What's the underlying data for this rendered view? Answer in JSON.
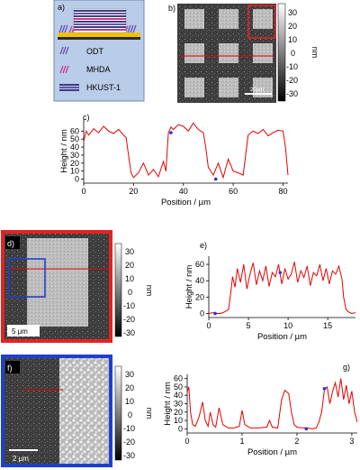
{
  "panels": {
    "a": {
      "label": "a)",
      "legend": [
        {
          "name": "ODT",
          "color": "#6a4fb3"
        },
        {
          "name": "MHDA",
          "color": "#c43a8c"
        },
        {
          "name": "HKUST-1",
          "color": "#3b3f7a"
        }
      ]
    },
    "b": {
      "label": "b)",
      "scalebar": "20μm"
    },
    "c": {
      "label": "c)"
    },
    "d": {
      "label": "d)",
      "scalebar": "5 μm"
    },
    "e": {
      "label": "e)"
    },
    "f": {
      "label": "f)",
      "scalebar": "2 μm"
    },
    "g": {
      "label": "g)"
    }
  },
  "colorbar": {
    "unit": "nm",
    "ticks": [
      "30",
      "20",
      "10",
      "0",
      "-10",
      "-20",
      "-30"
    ]
  },
  "colors": {
    "trace": "#e60000",
    "marker": "#3a2bd6",
    "frame_d": "#e52222",
    "frame_f": "#1f3fd1",
    "roi": "#1f3fd1"
  },
  "chart_data": [
    {
      "id": "c",
      "type": "line",
      "xlabel": "Position / µm",
      "ylabel": "Height / nm",
      "xlim": [
        0,
        82
      ],
      "ylim": [
        -5,
        75
      ],
      "xticks": [
        0,
        20,
        40,
        60,
        80
      ],
      "yticks": [
        0,
        10,
        20,
        30,
        40,
        50,
        60
      ],
      "x": [
        0,
        1,
        2,
        4,
        6,
        8,
        10,
        12,
        14,
        16,
        17,
        18,
        19,
        20,
        22,
        24,
        26,
        28,
        30,
        32,
        33,
        34,
        35,
        36,
        38,
        40,
        42,
        44,
        46,
        48,
        49,
        50,
        52,
        54,
        56,
        58,
        60,
        62,
        64,
        66,
        68,
        70,
        72,
        74,
        76,
        78,
        80,
        81,
        82
      ],
      "values": [
        47,
        60,
        55,
        63,
        58,
        66,
        60,
        57,
        62,
        55,
        52,
        30,
        8,
        2,
        8,
        20,
        5,
        12,
        3,
        22,
        10,
        58,
        65,
        62,
        68,
        66,
        60,
        70,
        62,
        58,
        40,
        15,
        5,
        20,
        2,
        25,
        10,
        8,
        5,
        55,
        60,
        57,
        62,
        54,
        58,
        61,
        60,
        40,
        5
      ],
      "markers": [
        {
          "x": 35,
          "y": 58
        },
        {
          "x": 53,
          "y": 0
        }
      ]
    },
    {
      "id": "e",
      "type": "line",
      "xlabel": "Position / µm",
      "ylabel": "Height / nm",
      "xlim": [
        0,
        18.5
      ],
      "ylim": [
        -5,
        70
      ],
      "xticks": [
        0,
        5,
        10,
        15
      ],
      "yticks": [
        0,
        20,
        40,
        60
      ],
      "x": [
        0,
        0.5,
        1,
        1.5,
        2,
        2.5,
        2.8,
        3,
        3.3,
        3.6,
        4,
        4.4,
        4.8,
        5.2,
        5.6,
        6,
        6.4,
        6.8,
        7.2,
        7.6,
        8,
        8.4,
        8.8,
        9.2,
        9.6,
        10,
        10.4,
        10.8,
        11.2,
        11.6,
        12,
        12.4,
        12.8,
        13.2,
        13.6,
        14,
        14.4,
        14.8,
        15.2,
        15.6,
        16,
        16.4,
        16.8,
        17,
        17.3,
        17.6,
        18,
        18.5
      ],
      "values": [
        0,
        1,
        0,
        0,
        2,
        5,
        28,
        45,
        32,
        55,
        38,
        60,
        30,
        48,
        62,
        35,
        52,
        40,
        58,
        33,
        50,
        45,
        60,
        36,
        55,
        42,
        48,
        63,
        38,
        52,
        44,
        58,
        34,
        50,
        46,
        60,
        40,
        55,
        36,
        52,
        48,
        58,
        42,
        20,
        5,
        2,
        0,
        1
      ],
      "markers": [
        {
          "x": 0.8,
          "y": 0
        },
        {
          "x": 9,
          "y": 50
        }
      ]
    },
    {
      "id": "g",
      "type": "line",
      "xlabel": "Position / µm",
      "ylabel": "Height / nm",
      "xlim": [
        0,
        3.1
      ],
      "ylim": [
        -5,
        65
      ],
      "xticks": [
        0,
        1,
        2,
        3
      ],
      "yticks": [
        0,
        10,
        20,
        30,
        40,
        50,
        60
      ],
      "x": [
        0,
        0.03,
        0.06,
        0.1,
        0.15,
        0.22,
        0.28,
        0.33,
        0.38,
        0.42,
        0.47,
        0.52,
        0.58,
        0.65,
        0.75,
        0.85,
        0.95,
        1.0,
        1.05,
        1.15,
        1.3,
        1.45,
        1.5,
        1.55,
        1.65,
        1.72,
        1.78,
        1.85,
        1.9,
        1.95,
        2.0,
        2.1,
        2.2,
        2.28,
        2.35,
        2.4,
        2.45,
        2.5,
        2.55,
        2.6,
        2.65,
        2.7,
        2.75,
        2.8,
        2.85,
        2.9,
        2.95,
        3.0,
        3.05,
        3.1
      ],
      "values": [
        44,
        50,
        20,
        5,
        3,
        15,
        32,
        10,
        3,
        20,
        5,
        2,
        25,
        5,
        1,
        1,
        3,
        22,
        5,
        1,
        1,
        2,
        10,
        2,
        1,
        35,
        46,
        42,
        20,
        5,
        2,
        1,
        1,
        0,
        1,
        8,
        20,
        46,
        50,
        30,
        45,
        55,
        38,
        60,
        35,
        52,
        30,
        45,
        20,
        8
      ],
      "markers": [
        {
          "x": 2.17,
          "y": 0
        },
        {
          "x": 2.5,
          "y": 48
        }
      ]
    }
  ]
}
